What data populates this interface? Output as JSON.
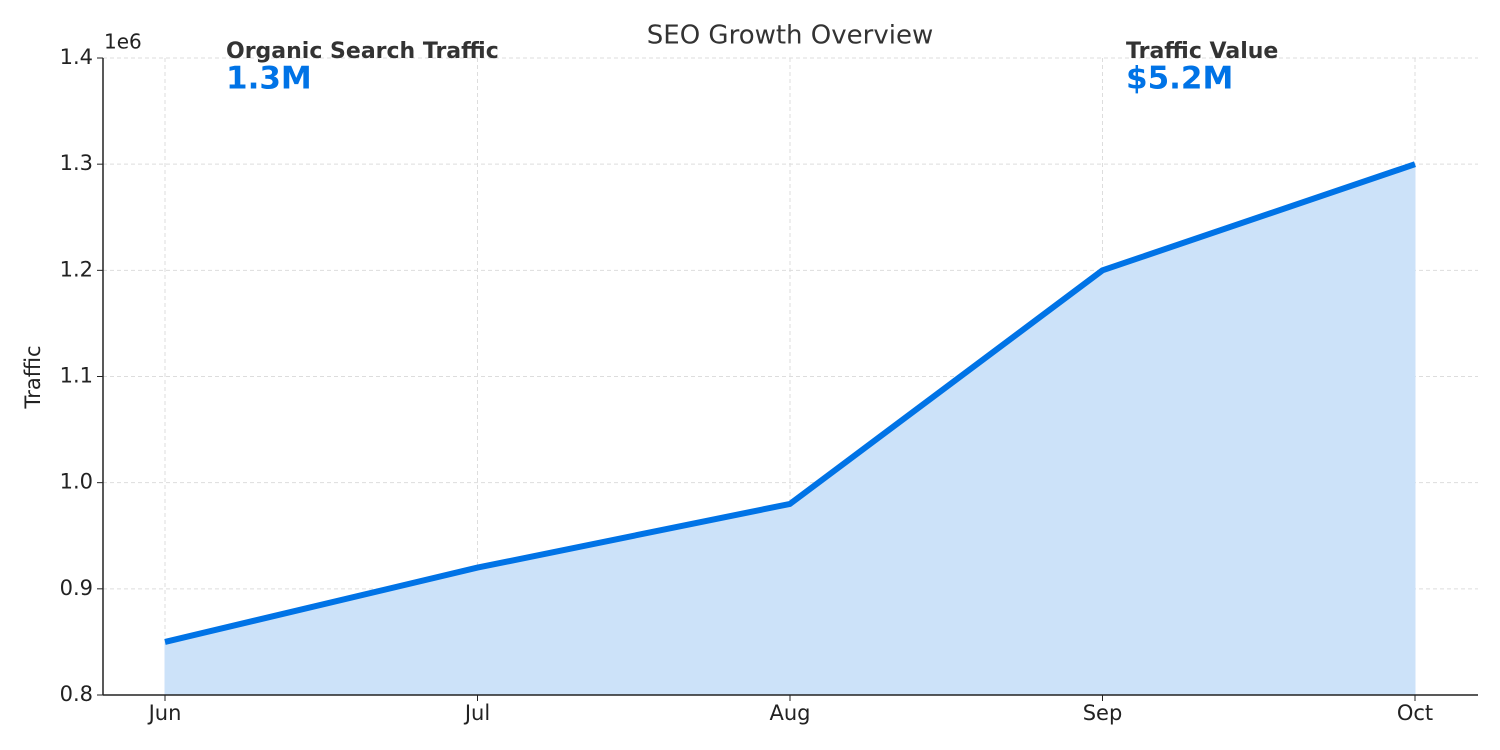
{
  "chart_data": {
    "type": "area-line",
    "title": "SEO Growth Overview",
    "y_label": "Traffic",
    "y_offset_label": "1e6",
    "categories": [
      "Jun",
      "Jul",
      "Aug",
      "Sep",
      "Oct"
    ],
    "values": [
      850000,
      920000,
      980000,
      1200000,
      1300000
    ],
    "color": "#0073e6",
    "fill_color": "#cce2f9",
    "ylim": [
      800000,
      1400000
    ],
    "yticks": [
      {
        "value": 800000,
        "label": "0.8"
      },
      {
        "value": 900000,
        "label": "0.9"
      },
      {
        "value": 1000000,
        "label": "1.0"
      },
      {
        "value": 1100000,
        "label": "1.1"
      },
      {
        "value": 1200000,
        "label": "1.2"
      },
      {
        "value": 1300000,
        "label": "1.3"
      },
      {
        "value": 1400000,
        "label": "1.4"
      }
    ],
    "grid": true,
    "annotations": [
      {
        "label": "Organic Search Traffic",
        "text": "1.3M"
      },
      {
        "label": "Traffic Value",
        "text": "$5.2M"
      }
    ]
  }
}
